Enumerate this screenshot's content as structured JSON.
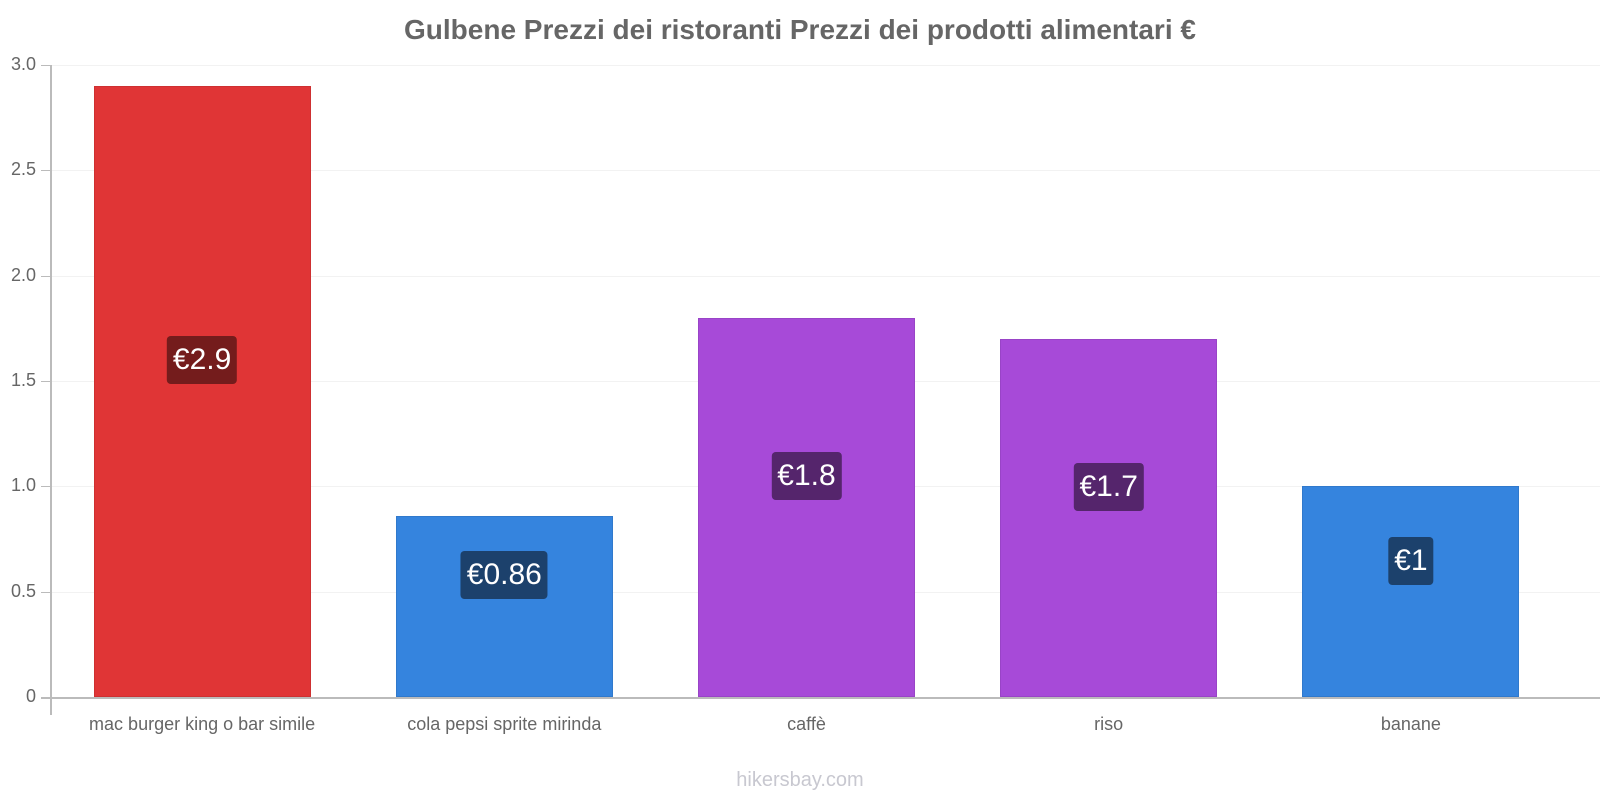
{
  "chart_data": {
    "type": "bar",
    "title": "Gulbene Prezzi dei ristoranti Prezzi dei prodotti alimentari €",
    "xlabel": "",
    "ylabel": "",
    "ylim": [
      0,
      3.0
    ],
    "yticks": [
      0,
      0.5,
      1.0,
      1.5,
      2.0,
      2.5,
      3.0
    ],
    "ytick_labels": [
      "0",
      "0.5",
      "1.0",
      "1.5",
      "2.0",
      "2.5",
      "3.0"
    ],
    "grid": true,
    "legend": null,
    "categories": [
      "mac burger king o bar simile",
      "cola pepsi sprite mirinda",
      "caffè",
      "riso",
      "banane"
    ],
    "values": [
      2.9,
      0.86,
      1.8,
      1.7,
      1.0
    ],
    "data_labels": [
      "€2.9",
      "€0.86",
      "€1.8",
      "€1.7",
      "€1"
    ],
    "bar_colors": [
      "#e03536",
      "#3584de",
      "#a74ad8",
      "#a74ad8",
      "#3584de"
    ],
    "label_bg_colors": [
      "#741c1c",
      "#1c416c",
      "#55256c",
      "#55256c",
      "#1c416c"
    ]
  },
  "watermark": "hikersbay.com"
}
